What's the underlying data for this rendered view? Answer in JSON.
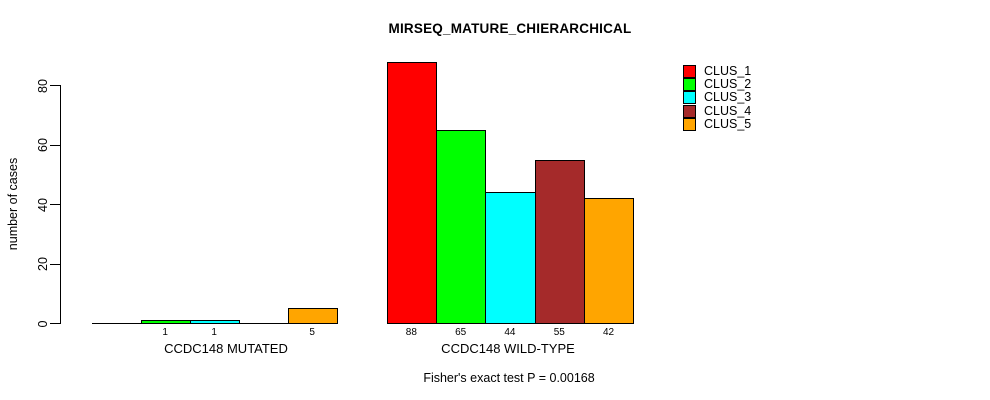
{
  "chart_data": {
    "type": "bar",
    "title": "MIRSEQ_MATURE_CHIERARCHICAL",
    "ylabel": "number of cases",
    "xlabel": "",
    "y_ticks": [
      0,
      20,
      40,
      60,
      80
    ],
    "ylim": [
      0,
      88
    ],
    "grid": false,
    "legend_position": "top-right-outside",
    "series": [
      {
        "name": "CLUS_1",
        "color": "#ff0000"
      },
      {
        "name": "CLUS_2",
        "color": "#00ff00"
      },
      {
        "name": "CLUS_3",
        "color": "#00ffff"
      },
      {
        "name": "CLUS_4",
        "color": "#a52a2a"
      },
      {
        "name": "CLUS_5",
        "color": "#ffa500"
      }
    ],
    "groups": [
      {
        "label": "CCDC148 MUTATED",
        "values": [
          0,
          1,
          1,
          0,
          5
        ],
        "value_labels": [
          "",
          "1",
          "1",
          "",
          "5"
        ]
      },
      {
        "label": "CCDC148 WILD-TYPE",
        "values": [
          88,
          65,
          44,
          55,
          42
        ],
        "value_labels": [
          "88",
          "65",
          "44",
          "55",
          "42"
        ]
      }
    ],
    "annotation": "Fisher's exact test P = 0.00168"
  }
}
